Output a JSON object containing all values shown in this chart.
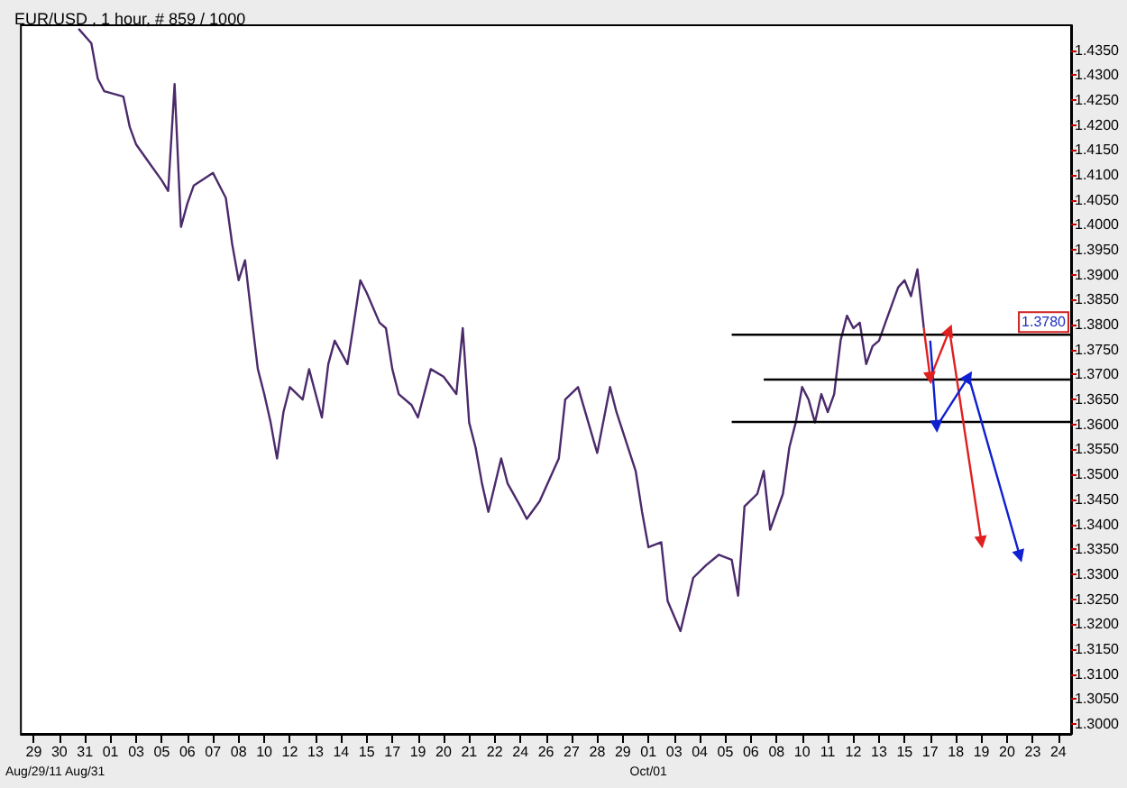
{
  "chart_data": {
    "type": "line",
    "title": "EUR/USD , 1 hour, # 859 / 1000",
    "grid": false,
    "categories": [
      null,
      null,
      "29\nAug/29/11",
      null,
      null,
      null,
      "30",
      null,
      null,
      null,
      "31\nAug/31",
      null,
      null,
      null,
      "01",
      null,
      null,
      null,
      "03",
      null,
      null,
      null,
      "05",
      null,
      null,
      null,
      "06",
      null,
      null,
      null,
      "07",
      null,
      null,
      null,
      "08",
      null,
      null,
      null,
      "10",
      null,
      null,
      null,
      "12",
      null,
      null,
      null,
      "13",
      null,
      null,
      null,
      "14",
      null,
      null,
      null,
      "15",
      null,
      null,
      null,
      "17",
      null,
      null,
      null,
      "19",
      null,
      null,
      null,
      "20",
      null,
      null,
      null,
      "21",
      null,
      null,
      null,
      "22",
      null,
      null,
      null,
      "24",
      null,
      null,
      null,
      "26",
      null,
      null,
      null,
      "27",
      null,
      null,
      null,
      "28",
      null,
      null,
      null,
      "29",
      null,
      null,
      null,
      "01\nOct/01",
      null,
      null,
      null,
      "03",
      null,
      null,
      null,
      "04",
      null,
      null,
      null,
      "05",
      null,
      null,
      null,
      "06",
      null,
      null,
      null,
      "08",
      null,
      null,
      null,
      "10",
      null,
      null,
      null,
      "11",
      null,
      null,
      null,
      "12",
      null,
      null,
      null,
      "13",
      null,
      null,
      null,
      "15",
      null,
      null,
      null,
      "17",
      null,
      null,
      null,
      "18",
      null,
      null,
      null,
      "19",
      null,
      null,
      null,
      "20",
      null,
      null,
      null,
      "23",
      null,
      null,
      null,
      "24",
      null,
      null
    ],
    "ylim": [
      1.298,
      1.44
    ],
    "yticks": [
      {
        "value": 1.3,
        "label": "1.3000"
      },
      {
        "value": 1.305,
        "label": "1.3050"
      },
      {
        "value": 1.31,
        "label": "1.3100"
      },
      {
        "value": 1.315,
        "label": "1.3150"
      },
      {
        "value": 1.32,
        "label": "1.3200"
      },
      {
        "value": 1.325,
        "label": "1.3250"
      },
      {
        "value": 1.33,
        "label": "1.3300"
      },
      {
        "value": 1.335,
        "label": "1.3350"
      },
      {
        "value": 1.34,
        "label": "1.3400"
      },
      {
        "value": 1.345,
        "label": "1.3450"
      },
      {
        "value": 1.35,
        "label": "1.3500"
      },
      {
        "value": 1.355,
        "label": "1.3550"
      },
      {
        "value": 1.36,
        "label": "1.3600"
      },
      {
        "value": 1.365,
        "label": "1.3650"
      },
      {
        "value": 1.37,
        "label": "1.3700"
      },
      {
        "value": 1.375,
        "label": "1.3750"
      },
      {
        "value": 1.38,
        "label": "1.3800"
      },
      {
        "value": 1.385,
        "label": "1.3850"
      },
      {
        "value": 1.39,
        "label": "1.3900"
      },
      {
        "value": 1.395,
        "label": "1.3950"
      },
      {
        "value": 1.4,
        "label": "1.4000"
      },
      {
        "value": 1.405,
        "label": "1.4050"
      },
      {
        "value": 1.41,
        "label": "1.4100"
      },
      {
        "value": 1.415,
        "label": "1.4150"
      },
      {
        "value": 1.42,
        "label": "1.4200"
      },
      {
        "value": 1.425,
        "label": "1.4250"
      },
      {
        "value": 1.43,
        "label": "1.4300"
      },
      {
        "value": 1.435,
        "label": "1.4350"
      }
    ],
    "annotations": [
      {
        "text": "1.3780",
        "y": 1.378
      }
    ],
    "series": [
      {
        "color": "#4b2a6b",
        "marker": "none",
        "values": [
          null,
          null,
          null,
          null,
          null,
          null,
          null,
          null,
          null,
          1.4393,
          null,
          1.4364,
          1.4293,
          1.4268,
          null,
          null,
          1.4257,
          1.4196,
          1.4161,
          null,
          1.4125,
          null,
          1.4089,
          1.4068,
          1.4282,
          1.3996,
          1.4043,
          1.4079,
          null,
          null,
          1.4104,
          1.4079,
          1.4054,
          1.3961,
          1.3889,
          1.3929,
          1.3818,
          1.3711,
          1.3661,
          1.3604,
          1.3532,
          1.3625,
          1.3675,
          null,
          1.365,
          1.3711,
          null,
          1.3614,
          1.3721,
          1.3768,
          null,
          1.3721,
          1.3804,
          1.3889,
          1.3864,
          null,
          1.3804,
          1.3793,
          1.3711,
          1.3661,
          null,
          1.3639,
          1.3614,
          null,
          1.3711,
          null,
          1.3696,
          null,
          1.3661,
          1.3793,
          1.3604,
          1.3554,
          1.3482,
          1.3425,
          null,
          1.3532,
          1.3482,
          null,
          1.3436,
          1.3411,
          null,
          1.3446,
          null,
          null,
          1.3532,
          1.365,
          null,
          1.3675,
          null,
          null,
          1.3543,
          null,
          1.3675,
          1.3625,
          null,
          null,
          1.3507,
          1.3425,
          1.3354,
          null,
          1.3364,
          1.3246,
          null,
          1.3186,
          null,
          1.3293,
          null,
          1.3318,
          null,
          1.3339,
          null,
          1.3329,
          1.3257,
          1.3436,
          null,
          1.3461,
          1.3507,
          1.3389,
          null,
          1.3461,
          1.3554,
          1.3604,
          1.3675,
          1.365,
          1.3604,
          1.3661,
          1.3625,
          1.3661,
          1.3768,
          1.3818,
          1.3793,
          1.3804,
          1.3721,
          1.3757,
          1.3768,
          1.3804,
          null,
          1.3875,
          1.3889,
          1.3857,
          1.3911,
          1.3793,
          null,
          null,
          null,
          null,
          null,
          null,
          null,
          null,
          null,
          null,
          null,
          null,
          null,
          null,
          null,
          null,
          null,
          null,
          null,
          null,
          null,
          null,
          null
        ]
      },
      {
        "color": "#000000",
        "marker": "none",
        "values": [
          null,
          null,
          null,
          null,
          null,
          null,
          null,
          null,
          null,
          null,
          null,
          null,
          null,
          null,
          null,
          null,
          null,
          null,
          null,
          null,
          null,
          null,
          null,
          null,
          null,
          null,
          null,
          null,
          null,
          null,
          null,
          null,
          null,
          null,
          null,
          null,
          null,
          null,
          null,
          null,
          null,
          null,
          null,
          null,
          null,
          null,
          null,
          null,
          null,
          null,
          null,
          null,
          null,
          null,
          null,
          null,
          null,
          null,
          null,
          null,
          null,
          null,
          null,
          null,
          null,
          null,
          null,
          null,
          null,
          null,
          null,
          null,
          null,
          null,
          null,
          null,
          null,
          null,
          null,
          null,
          null,
          null,
          null,
          null,
          null,
          null,
          null,
          null,
          null,
          null,
          null,
          null,
          null,
          null,
          null,
          null,
          null,
          null,
          null,
          null,
          null,
          null,
          null,
          null,
          null,
          null,
          null,
          null,
          null,
          null,
          null,
          1.378,
          null,
          null,
          null,
          null,
          null,
          null,
          null,
          null,
          null,
          null,
          null,
          null,
          null,
          null,
          null,
          null,
          null,
          null,
          null,
          null,
          null,
          null,
          null,
          null,
          null,
          null,
          null,
          null,
          null,
          null,
          null,
          null,
          null,
          null,
          null,
          null,
          null,
          null,
          null,
          null,
          null,
          null,
          null,
          null,
          null,
          null,
          null,
          null,
          null,
          null,
          null,
          null,
          1.378
        ]
      },
      {
        "color": "#000000",
        "marker": "none",
        "values": [
          null,
          null,
          null,
          null,
          null,
          null,
          null,
          null,
          null,
          null,
          null,
          null,
          null,
          null,
          null,
          null,
          null,
          null,
          null,
          null,
          null,
          null,
          null,
          null,
          null,
          null,
          null,
          null,
          null,
          null,
          null,
          null,
          null,
          null,
          null,
          null,
          null,
          null,
          null,
          null,
          null,
          null,
          null,
          null,
          null,
          null,
          null,
          null,
          null,
          null,
          null,
          null,
          null,
          null,
          null,
          null,
          null,
          null,
          null,
          null,
          null,
          null,
          null,
          null,
          null,
          null,
          null,
          null,
          null,
          null,
          null,
          null,
          null,
          null,
          null,
          null,
          null,
          null,
          null,
          null,
          null,
          null,
          null,
          null,
          null,
          null,
          null,
          null,
          null,
          null,
          null,
          null,
          null,
          null,
          null,
          null,
          null,
          null,
          null,
          null,
          null,
          null,
          null,
          null,
          null,
          null,
          null,
          null,
          null,
          null,
          null,
          null,
          null,
          null,
          null,
          null,
          1.369,
          null,
          null,
          null,
          null,
          null,
          null,
          null,
          null,
          null,
          null,
          null,
          null,
          null,
          null,
          null,
          null,
          null,
          null,
          null,
          null,
          null,
          null,
          null,
          null,
          null,
          null,
          null,
          null,
          null,
          null,
          null,
          null,
          null,
          null,
          null,
          null,
          null,
          null,
          null,
          null,
          null,
          null,
          null,
          null,
          null,
          null,
          null,
          1.369
        ]
      },
      {
        "color": "#000000",
        "marker": "none",
        "values": [
          null,
          null,
          null,
          null,
          null,
          null,
          null,
          null,
          null,
          null,
          null,
          null,
          null,
          null,
          null,
          null,
          null,
          null,
          null,
          null,
          null,
          null,
          null,
          null,
          null,
          null,
          null,
          null,
          null,
          null,
          null,
          null,
          null,
          null,
          null,
          null,
          null,
          null,
          null,
          null,
          null,
          null,
          null,
          null,
          null,
          null,
          null,
          null,
          null,
          null,
          null,
          null,
          null,
          null,
          null,
          null,
          null,
          null,
          null,
          null,
          null,
          null,
          null,
          null,
          null,
          null,
          null,
          null,
          null,
          null,
          null,
          null,
          null,
          null,
          null,
          null,
          null,
          null,
          null,
          null,
          null,
          null,
          null,
          null,
          null,
          null,
          null,
          null,
          null,
          null,
          null,
          null,
          null,
          null,
          null,
          null,
          null,
          null,
          null,
          null,
          null,
          null,
          null,
          null,
          null,
          null,
          null,
          null,
          null,
          null,
          null,
          1.3605,
          null,
          null,
          null,
          null,
          null,
          null,
          null,
          null,
          null,
          null,
          null,
          null,
          null,
          null,
          null,
          null,
          null,
          null,
          null,
          null,
          null,
          null,
          null,
          null,
          null,
          null,
          null,
          null,
          null,
          null,
          null,
          null,
          null,
          null,
          null,
          null,
          null,
          null,
          null,
          null,
          null,
          null,
          null,
          null,
          null,
          null,
          null,
          null,
          null,
          null,
          null,
          null,
          1.3605
        ]
      },
      {
        "color": "#e02020",
        "marker": "triangle",
        "values": [
          null,
          null,
          null,
          null,
          null,
          null,
          null,
          null,
          null,
          null,
          null,
          null,
          null,
          null,
          null,
          null,
          null,
          null,
          null,
          null,
          null,
          null,
          null,
          null,
          null,
          null,
          null,
          null,
          null,
          null,
          null,
          null,
          null,
          null,
          null,
          null,
          null,
          null,
          null,
          null,
          null,
          null,
          null,
          null,
          null,
          null,
          null,
          null,
          null,
          null,
          null,
          null,
          null,
          null,
          null,
          null,
          null,
          null,
          null,
          null,
          null,
          null,
          null,
          null,
          null,
          null,
          null,
          null,
          null,
          null,
          null,
          null,
          null,
          null,
          null,
          null,
          null,
          null,
          null,
          null,
          null,
          null,
          null,
          null,
          null,
          null,
          null,
          null,
          null,
          null,
          null,
          null,
          null,
          null,
          null,
          null,
          null,
          null,
          null,
          null,
          null,
          null,
          null,
          null,
          null,
          null,
          null,
          null,
          null,
          null,
          null,
          null,
          null,
          null,
          null,
          null,
          null,
          null,
          null,
          null,
          null,
          null,
          null,
          null,
          null,
          null,
          null,
          null,
          null,
          null,
          null,
          null,
          null,
          null,
          null,
          null,
          null,
          null,
          null,
          null,
          null,
          1.3793,
          1.3693,
          null,
          null,
          1.3789,
          null,
          null,
          null,
          null,
          1.3364,
          null,
          null,
          null,
          null,
          null,
          null,
          null,
          null,
          null,
          null,
          null,
          null,
          null,
          null
        ]
      },
      {
        "color": "#1020d0",
        "marker": "triangle",
        "values": [
          null,
          null,
          null,
          null,
          null,
          null,
          null,
          null,
          null,
          null,
          null,
          null,
          null,
          null,
          null,
          null,
          null,
          null,
          null,
          null,
          null,
          null,
          null,
          null,
          null,
          null,
          null,
          null,
          null,
          null,
          null,
          null,
          null,
          null,
          null,
          null,
          null,
          null,
          null,
          null,
          null,
          null,
          null,
          null,
          null,
          null,
          null,
          null,
          null,
          null,
          null,
          null,
          null,
          null,
          null,
          null,
          null,
          null,
          null,
          null,
          null,
          null,
          null,
          null,
          null,
          null,
          null,
          null,
          null,
          null,
          null,
          null,
          null,
          null,
          null,
          null,
          null,
          null,
          null,
          null,
          null,
          null,
          null,
          null,
          null,
          null,
          null,
          null,
          null,
          null,
          null,
          null,
          null,
          null,
          null,
          null,
          null,
          null,
          null,
          null,
          null,
          null,
          null,
          null,
          null,
          null,
          null,
          null,
          null,
          null,
          null,
          null,
          null,
          null,
          null,
          null,
          null,
          null,
          null,
          null,
          null,
          null,
          null,
          null,
          null,
          null,
          null,
          null,
          null,
          null,
          null,
          null,
          null,
          null,
          null,
          null,
          null,
          null,
          null,
          null,
          null,
          null,
          1.3768,
          1.3596,
          null,
          null,
          null,
          null,
          1.3696,
          null,
          null,
          null,
          null,
          null,
          null,
          null,
          1.3336,
          null,
          null,
          null,
          null,
          null,
          null,
          null,
          null
        ]
      }
    ]
  }
}
